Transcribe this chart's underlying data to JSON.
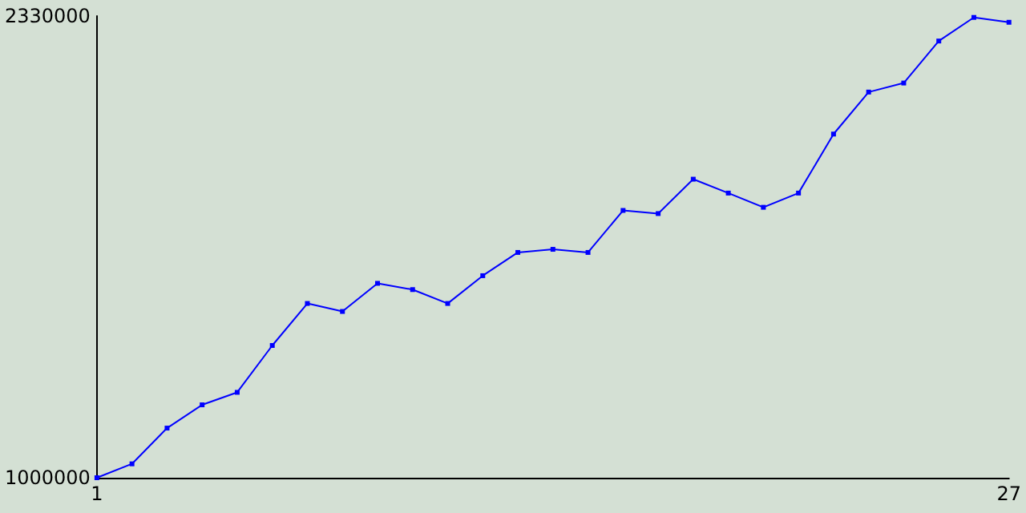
{
  "chart_data": {
    "type": "line",
    "x": [
      1,
      2,
      3,
      4,
      5,
      6,
      7,
      8,
      9,
      10,
      11,
      12,
      13,
      14,
      15,
      16,
      17,
      18,
      19,
      20,
      21,
      22,
      23,
      24,
      25,
      26,
      27
    ],
    "series": [
      {
        "color": "#0000ff",
        "values": [
          1000000,
          1040000,
          1143000,
          1210000,
          1246000,
          1381000,
          1502000,
          1479000,
          1560000,
          1542000,
          1502000,
          1582000,
          1649000,
          1658000,
          1649000,
          1770000,
          1761000,
          1860000,
          1820000,
          1779000,
          1820000,
          1990000,
          2111000,
          2137000,
          2258000,
          2326000,
          2312000
        ]
      }
    ],
    "xlim": [
      1,
      27
    ],
    "xticks": [
      1,
      27
    ],
    "ylim": [
      1000000,
      2330000
    ],
    "yticks": [
      1000000,
      2330000
    ],
    "grid": false,
    "marker": "square",
    "line_style": "solid"
  }
}
